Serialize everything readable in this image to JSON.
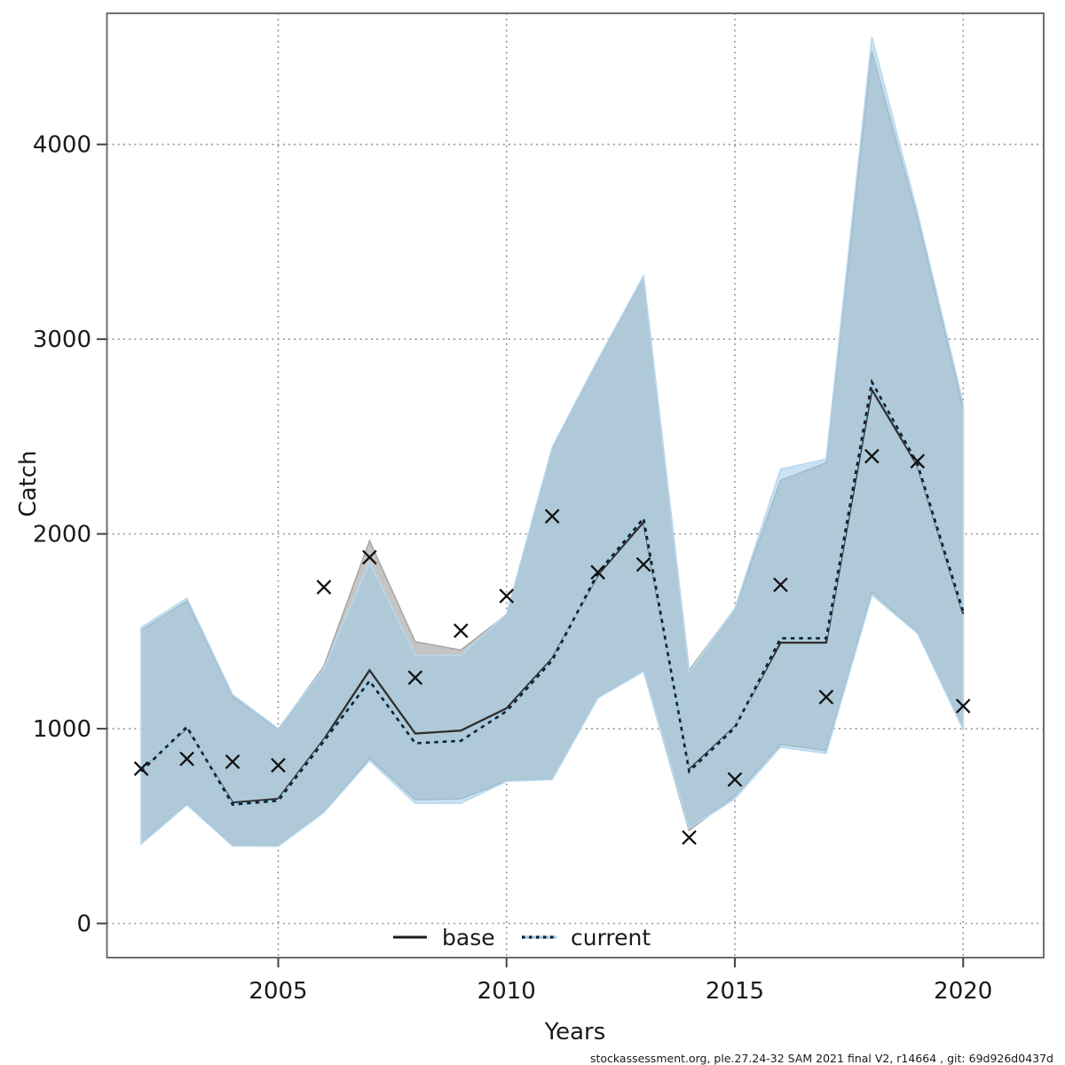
{
  "chart_data": {
    "type": "line",
    "title": "",
    "xlabel": "Years",
    "ylabel": "Catch",
    "x_ticks": [
      2005,
      2010,
      2015,
      2020
    ],
    "y_ticks": [
      0,
      1000,
      2000,
      3000,
      4000
    ],
    "xlim": [
      2002,
      2020
    ],
    "ylim": [
      0,
      4600
    ],
    "grid": true,
    "legend_position": "bottom-center",
    "years": [
      2002,
      2003,
      2004,
      2005,
      2006,
      2007,
      2008,
      2009,
      2010,
      2011,
      2012,
      2013,
      2014,
      2015,
      2016,
      2017,
      2018,
      2019,
      2020
    ],
    "series": [
      {
        "name": "base",
        "style": "solid",
        "values": [
          785,
          1005,
          620,
          640,
          945,
          1300,
          975,
          990,
          1105,
          1360,
          1790,
          2060,
          790,
          1010,
          1442,
          1442,
          2740,
          2350,
          1590
        ],
        "band_upper": [
          1505,
          1655,
          1165,
          995,
          1320,
          1965,
          1446,
          1404,
          1585,
          2440,
          2890,
          3320,
          1300,
          1615,
          2275,
          2365,
          4475,
          3620,
          2640
        ],
        "band_lower": [
          410,
          612,
          400,
          398,
          572,
          849,
          635,
          640,
          732,
          740,
          1160,
          1296,
          478,
          655,
          919,
          888,
          1700,
          1495,
          1000
        ]
      },
      {
        "name": "current",
        "style": "dotted",
        "values": [
          780,
          1010,
          610,
          630,
          935,
          1245,
          925,
          938,
          1090,
          1350,
          1800,
          2080,
          780,
          1005,
          1464,
          1464,
          2780,
          2360,
          1600
        ],
        "band_upper": [
          1520,
          1670,
          1175,
          1000,
          1310,
          1855,
          1376,
          1377,
          1590,
          2445,
          2895,
          3325,
          1290,
          1617,
          2332,
          2385,
          4552,
          3650,
          2670
        ],
        "band_lower": [
          408,
          609,
          398,
          396,
          570,
          836,
          617,
          617,
          730,
          738,
          1158,
          1294,
          490,
          640,
          905,
          873,
          1686,
          1490,
          996
        ]
      },
      {
        "name": "observed-catches",
        "style": "x-markers",
        "values": [
          795,
          845,
          830,
          812,
          1727,
          1880,
          1262,
          1503,
          1681,
          2091,
          1803,
          1843,
          441,
          739,
          1739,
          1162,
          2399,
          2373,
          1116
        ]
      }
    ]
  },
  "axes": {
    "x_label": "Years",
    "y_label": "Catch"
  },
  "legend": {
    "items": [
      {
        "label": "base"
      },
      {
        "label": "current"
      }
    ]
  },
  "footer": "stockassessment.org, ple.27.24-32  SAM  2021  final  V2, r14664 , git: 69d926d0437d",
  "colors": {
    "base_band": "#c5c5c5",
    "base_band_edge": "#a8a8a8",
    "current_band": "#c9e3f2",
    "current_band_overlap": "#a9c7d8",
    "current_band_edge": "#b8d9ee",
    "base_line": "#2f2f2f",
    "current_line_light": "#9fcbe8",
    "current_line_dark": "#16202a",
    "grid": "#8c8c8c",
    "marker": "#111111",
    "plot_border": "#6e6e6e"
  }
}
